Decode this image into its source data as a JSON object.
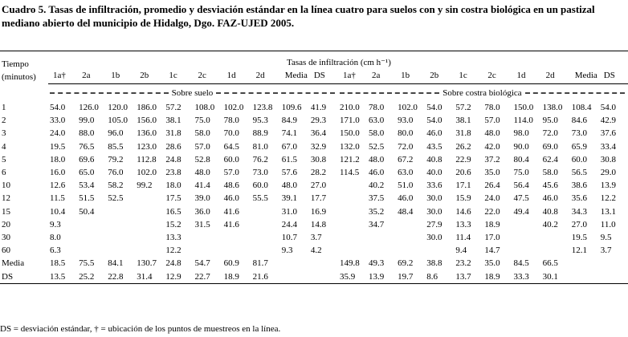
{
  "caption": "Cuadro 5. Tasas de infiltración, promedio y desviación estándar en la línea cuatro para suelos con y sin costra biológica en un pastizal mediano abierto del municipio de Hidalgo, Dgo. FAZ-UJED 2005.",
  "table": {
    "time_header": "Tiempo (minutos)",
    "rates_header": "Tasas de infiltración (cm h⁻¹)",
    "columns": [
      "1a†",
      "2a",
      "1b",
      "2b",
      "1c",
      "2c",
      "1d",
      "2d",
      "Media",
      "DS",
      "1a†",
      "2a",
      "1b",
      "2b",
      "1c",
      "2c",
      "1d",
      "2d",
      "Media",
      "DS"
    ],
    "groups": [
      "Sobre suelo",
      "Sobre costra biológica"
    ],
    "rows": [
      {
        "label": "1",
        "values": [
          "54.0",
          "126.0",
          "120.0",
          "186.0",
          "57.2",
          "108.0",
          "102.0",
          "123.8",
          "109.6",
          "41.9",
          "210.0",
          "78.0",
          "102.0",
          "54.0",
          "57.2",
          "78.0",
          "150.0",
          "138.0",
          "108.4",
          "54.0"
        ]
      },
      {
        "label": "2",
        "values": [
          "33.0",
          "99.0",
          "105.0",
          "156.0",
          "38.1",
          "75.0",
          "78.0",
          "95.3",
          "84.9",
          "29.3",
          "171.0",
          "63.0",
          "93.0",
          "54.0",
          "38.1",
          "57.0",
          "114.0",
          "95.0",
          "84.6",
          "42.9"
        ]
      },
      {
        "label": "3",
        "values": [
          "24.0",
          "88.0",
          "96.0",
          "136.0",
          "31.8",
          "58.0",
          "70.0",
          "88.9",
          "74.1",
          "36.4",
          "150.0",
          "58.0",
          "80.0",
          "46.0",
          "31.8",
          "48.0",
          "98.0",
          "72.0",
          "73.0",
          "37.6"
        ]
      },
      {
        "label": "4",
        "values": [
          "19.5",
          "76.5",
          "85.5",
          "123.0",
          "28.6",
          "57.0",
          "64.5",
          "81.0",
          "67.0",
          "32.9",
          "132.0",
          "52.5",
          "72.0",
          "43.5",
          "26.2",
          "42.0",
          "90.0",
          "69.0",
          "65.9",
          "33.4"
        ]
      },
      {
        "label": "5",
        "values": [
          "18.0",
          "69.6",
          "79.2",
          "112.8",
          "24.8",
          "52.8",
          "60.0",
          "76.2",
          "61.5",
          "30.8",
          "121.2",
          "48.0",
          "67.2",
          "40.8",
          "22.9",
          "37.2",
          "80.4",
          "62.4",
          "60.0",
          "30.8"
        ]
      },
      {
        "label": "6",
        "values": [
          "16.0",
          "65.0",
          "76.0",
          "102.0",
          "23.8",
          "48.0",
          "57.0",
          "73.0",
          "57.6",
          "28.2",
          "114.5",
          "46.0",
          "63.0",
          "40.0",
          "20.6",
          "35.0",
          "75.0",
          "58.0",
          "56.5",
          "29.0"
        ]
      },
      {
        "label": "10",
        "values": [
          "12.6",
          "53.4",
          "58.2",
          "99.2",
          "18.0",
          "41.4",
          "48.6",
          "60.0",
          "48.0",
          "27.0",
          null,
          "40.2",
          "51.0",
          "33.6",
          "17.1",
          "26.4",
          "56.4",
          "45.6",
          "38.6",
          "13.9"
        ]
      },
      {
        "label": "12",
        "values": [
          "11.5",
          "51.5",
          "52.5",
          null,
          "17.5",
          "39.0",
          "46.0",
          "55.5",
          "39.1",
          "17.7",
          null,
          "37.5",
          "46.0",
          "30.0",
          "15.9",
          "24.0",
          "47.5",
          "46.0",
          "35.6",
          "12.2"
        ]
      },
      {
        "label": "15",
        "values": [
          "10.4",
          "50.4",
          null,
          null,
          "16.5",
          "36.0",
          "41.6",
          null,
          "31.0",
          "16.9",
          null,
          "35.2",
          "48.4",
          "30.0",
          "14.6",
          "22.0",
          "49.4",
          "40.8",
          "34.3",
          "13.1"
        ]
      },
      {
        "label": "20",
        "values": [
          "9.3",
          null,
          null,
          null,
          "15.2",
          "31.5",
          "41.6",
          null,
          "24.4",
          "14.8",
          null,
          "34.7",
          null,
          "27.9",
          "13.3",
          "18.9",
          null,
          "40.2",
          "27.0",
          "11.0"
        ]
      },
      {
        "label": "30",
        "values": [
          "8.0",
          null,
          null,
          null,
          "13.3",
          null,
          null,
          null,
          "10.7",
          "3.7",
          null,
          null,
          null,
          "30.0",
          "11.4",
          "17.0",
          null,
          null,
          "19.5",
          "9.5"
        ]
      },
      {
        "label": "60",
        "values": [
          "6.3",
          null,
          null,
          null,
          "12.2",
          null,
          null,
          null,
          "9.3",
          "4.2",
          null,
          null,
          null,
          null,
          "9.4",
          "14.7",
          null,
          null,
          "12.1",
          "3.7"
        ]
      },
      {
        "label": "Media",
        "values": [
          "18.5",
          "75.5",
          "84.1",
          "130.7",
          "24.8",
          "54.7",
          "60.9",
          "81.7",
          null,
          null,
          "149.8",
          "49.3",
          "69.2",
          "38.8",
          "23.2",
          "35.0",
          "84.5",
          "66.5",
          null,
          null
        ]
      },
      {
        "label": "DS",
        "values": [
          "13.5",
          "25.2",
          "22.8",
          "31.4",
          "12.9",
          "22.7",
          "18.9",
          "21.6",
          null,
          null,
          "35.9",
          "13.9",
          "19.7",
          "8.6",
          "13.7",
          "18.9",
          "33.3",
          "30.1",
          null,
          null
        ]
      }
    ]
  },
  "footnote": "DS = desviación estándar, † = ubicación de los puntos de muestreos en la línea."
}
